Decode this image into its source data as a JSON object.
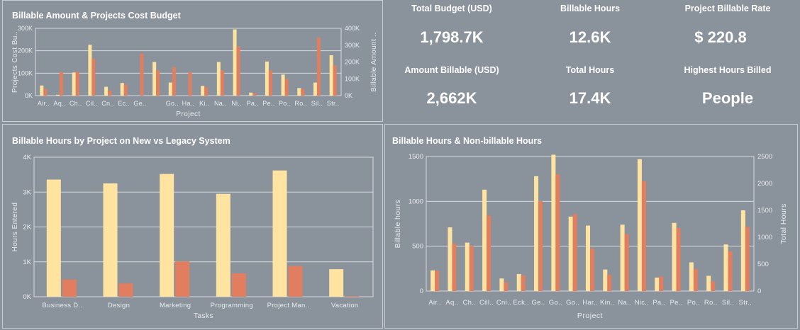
{
  "colors": {
    "yellow": "#ffe3a0",
    "orange": "#e07e5f",
    "grid": "#d6dade",
    "axis_text": "#e9ecef"
  },
  "kpis": [
    {
      "label": "Total Budget (USD)",
      "value": "1,798.7K"
    },
    {
      "label": "Billable Hours",
      "value": "12.6K"
    },
    {
      "label": "Project Billable Rate",
      "value": "$ 220.8"
    },
    {
      "label": "Amount Billable (USD)",
      "value": "2,662K"
    },
    {
      "label": "Total Hours",
      "value": "17.4K"
    },
    {
      "label": "Highest Hours Billed",
      "value": "People"
    }
  ],
  "chart_data": [
    {
      "type": "bar",
      "title": "Billable Amount & Projects Cost Budget",
      "xlabel": "Project",
      "ylabel": "Projects Cost Bu..",
      "y2label": "Billable Amount ..",
      "categories": [
        "Air..",
        "Aq..",
        "Ch..",
        "Cil..",
        "Cn..",
        "Ec..",
        "Ge..",
        "",
        "Go..",
        "Ha..",
        "Ki..",
        "Na..",
        "Ni..",
        "Pa..",
        "Pe..",
        "Po..",
        "Ro..",
        "Sil..",
        "Str.."
      ],
      "left_ticks": [
        "0K",
        "100K",
        "200K",
        "300K"
      ],
      "right_ticks": [
        "0K",
        "100K",
        "200K",
        "300K",
        "400K"
      ],
      "ylim": [
        0,
        320000
      ],
      "y2lim": [
        0,
        400000
      ],
      "series": [
        {
          "axis": "left",
          "values": [
            48000,
            4000,
            110000,
            242000,
            42000,
            60000,
            0,
            160000,
            62000,
            0,
            46000,
            160000,
            315000,
            14000,
            162000,
            100000,
            36000,
            62000,
            192000
          ]
        },
        {
          "axis": "right",
          "values": [
            40000,
            140000,
            142000,
            220000,
            30000,
            65000,
            250000,
            150000,
            170000,
            140000,
            50000,
            150000,
            292000,
            14000,
            150000,
            100000,
            40000,
            345000,
            180000
          ]
        }
      ],
      "grid": true
    },
    {
      "type": "bar",
      "title": "Billable Hours by Project on New vs Legacy System",
      "xlabel": "Tasks",
      "ylabel": "Hours Entered",
      "categories": [
        "Business D..",
        "Design",
        "Marketing",
        "Programming",
        "Project Man..",
        "Vacation"
      ],
      "y_ticks": [
        "0K",
        "1K",
        "2K",
        "3K",
        "4K"
      ],
      "ylim": [
        0,
        4000
      ],
      "series": [
        {
          "values": [
            3360,
            3250,
            3520,
            2950,
            3620,
            790
          ]
        },
        {
          "values": [
            490,
            380,
            1010,
            670,
            880,
            20
          ]
        }
      ],
      "grid": true
    },
    {
      "type": "bar",
      "title": "Billable Hours & Non-billable Hours",
      "xlabel": "Project",
      "ylabel": "Billable hours",
      "y2label": "Total Hours",
      "categories": [
        "Air..",
        "Aq..",
        "Ch..",
        "Cill..",
        "Cni..",
        "Eck..",
        "Ge..",
        "Go..",
        "Go..",
        "Har..",
        "Kin..",
        "Na..",
        "Nic..",
        "Pa..",
        "Pe..",
        "Po..",
        "Ro..",
        "Sil..",
        "Str.."
      ],
      "left_ticks": [
        "0",
        "500",
        "1000",
        "1500"
      ],
      "right_ticks": [
        "0",
        "500",
        "1000",
        "1500",
        "2000",
        "2500"
      ],
      "ylim": [
        0,
        1500
      ],
      "y2lim": [
        0,
        2500
      ],
      "series": [
        {
          "axis": "left",
          "values": [
            230,
            710,
            540,
            1130,
            140,
            190,
            1280,
            1520,
            830,
            730,
            240,
            740,
            1470,
            150,
            760,
            320,
            170,
            520,
            900
          ]
        },
        {
          "axis": "right",
          "values": [
            380,
            880,
            840,
            1400,
            160,
            290,
            1670,
            2170,
            1430,
            790,
            300,
            1060,
            2040,
            270,
            1170,
            410,
            180,
            740,
            1190
          ]
        }
      ],
      "grid": true
    }
  ]
}
